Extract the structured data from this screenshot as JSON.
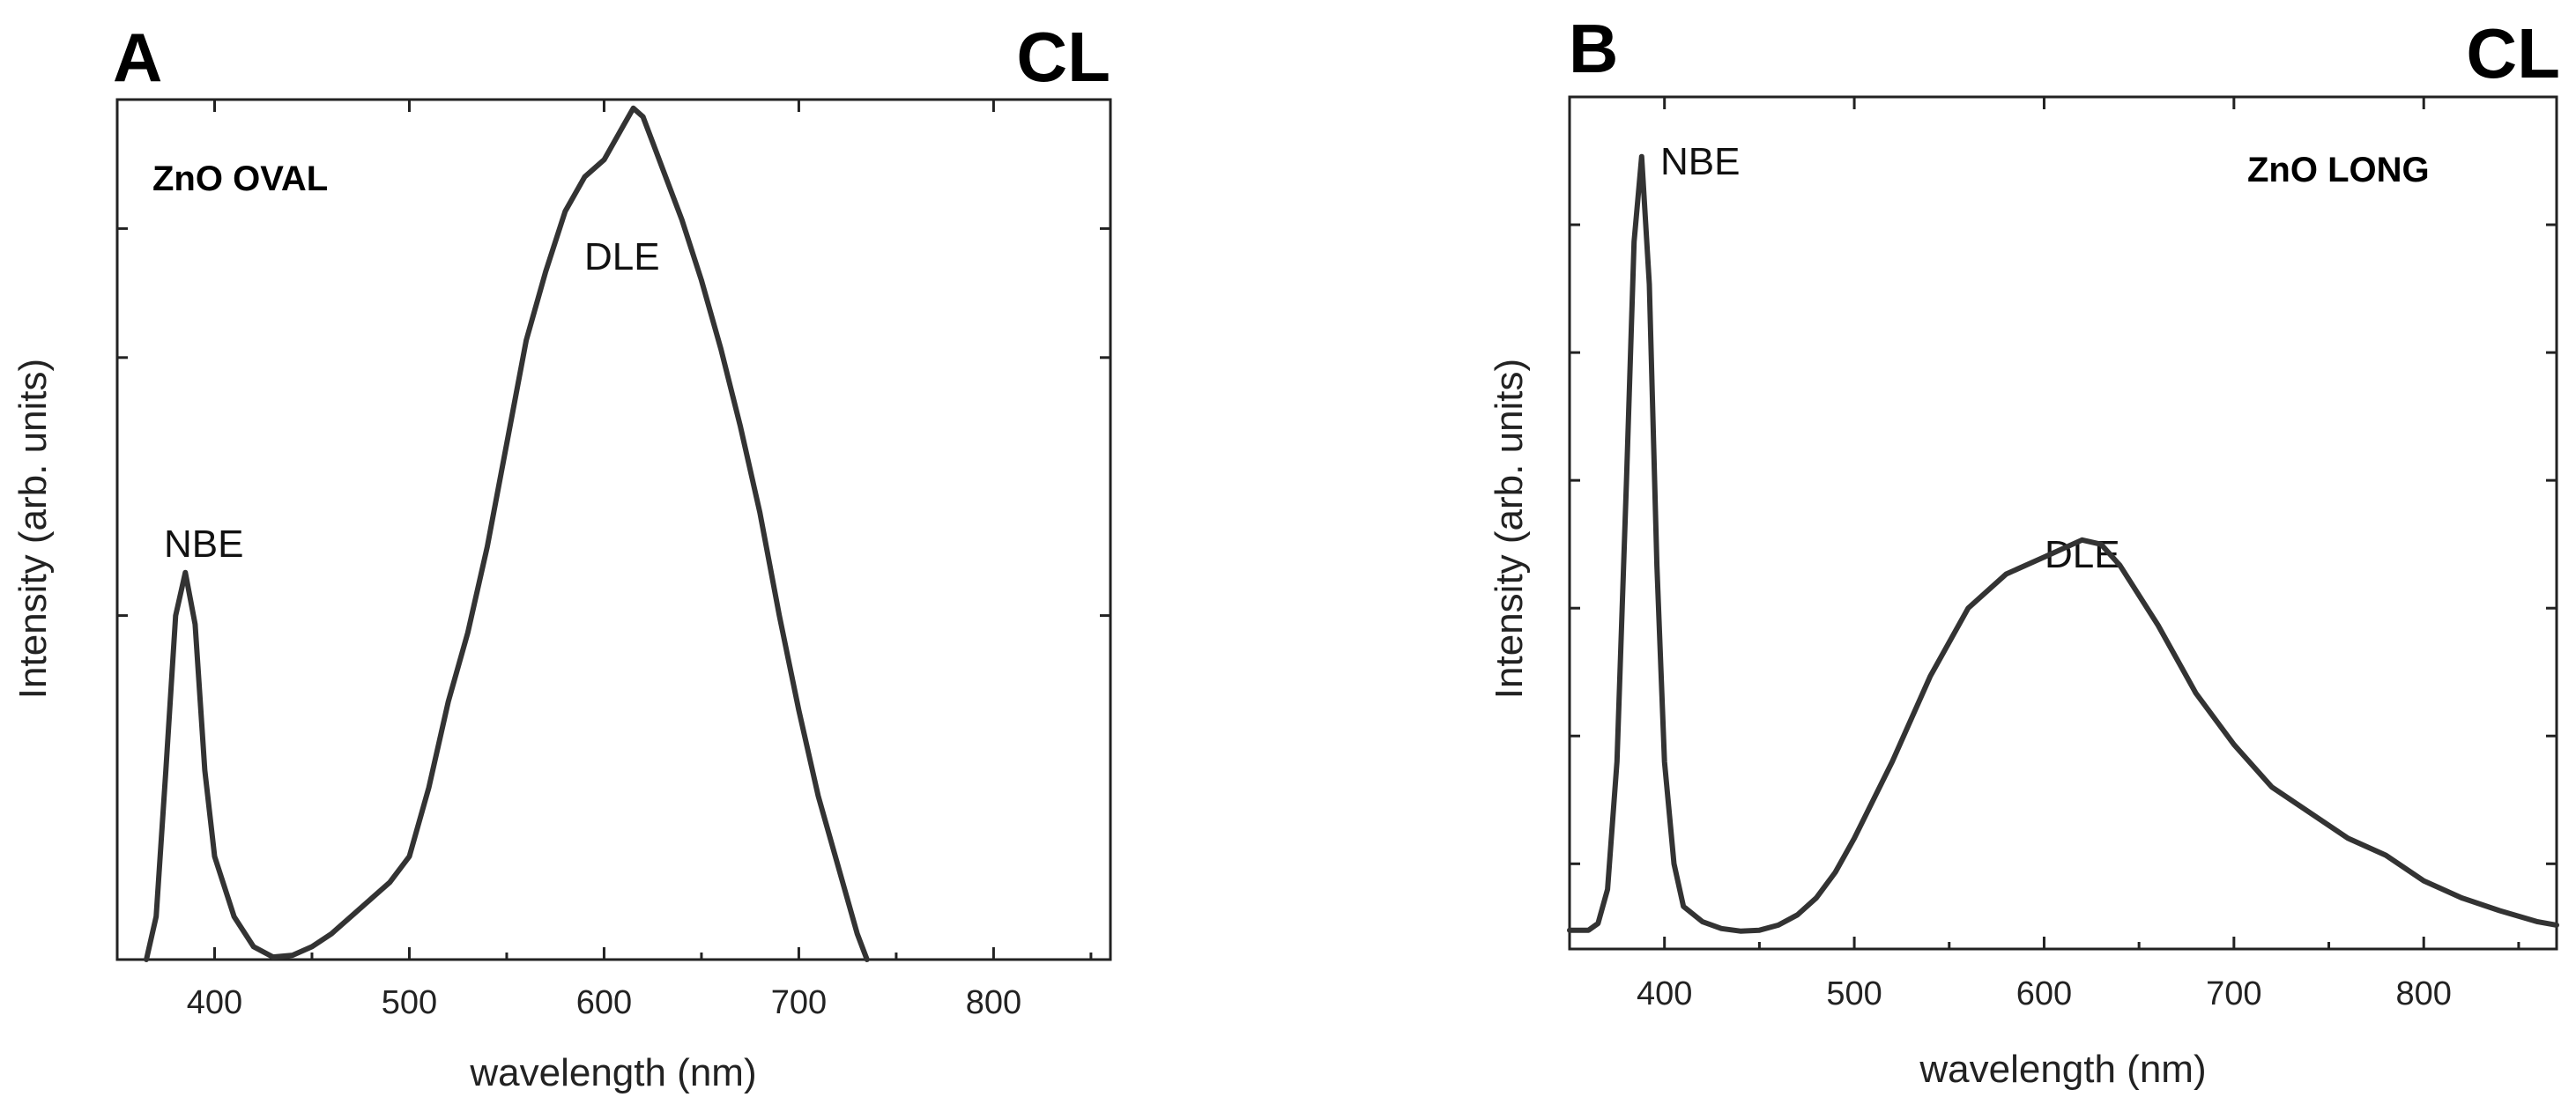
{
  "figure": {
    "panels": [
      {
        "letter": "A",
        "method": "CL",
        "sample": "ZnO OVAL",
        "peak_labels": {
          "nbe": "NBE",
          "dle": "DLE"
        },
        "xlabel": "wavelength (nm)",
        "ylabel": "Intensity (arb. units)"
      },
      {
        "letter": "B",
        "method": "CL",
        "sample": "ZnO LONG",
        "peak_labels": {
          "nbe": "NBE",
          "dle": "DLE"
        },
        "xlabel": "wavelength (nm)",
        "ylabel": "Intensity (arb. units)"
      }
    ]
  },
  "chart_data": [
    {
      "type": "line",
      "title": "A",
      "subtitle": "CL",
      "series": [
        {
          "name": "ZnO OVAL",
          "x": [
            365,
            370,
            375,
            380,
            385,
            390,
            395,
            400,
            410,
            420,
            430,
            440,
            450,
            460,
            470,
            480,
            490,
            500,
            510,
            520,
            530,
            540,
            550,
            560,
            570,
            580,
            590,
            600,
            605,
            610,
            615,
            620,
            625,
            630,
            640,
            650,
            660,
            670,
            680,
            690,
            700,
            710,
            720,
            730,
            735
          ],
          "y": [
            0,
            5,
            22,
            40,
            45,
            39,
            22,
            12,
            5,
            1.5,
            0.3,
            0.5,
            1.5,
            3,
            5,
            7,
            9,
            12,
            20,
            30,
            38,
            48,
            60,
            72,
            80,
            87,
            91,
            93,
            95,
            97,
            99,
            98,
            95,
            92,
            86,
            79,
            71,
            62,
            52,
            40,
            29,
            19,
            11,
            3,
            0
          ]
        }
      ],
      "xlabel": "wavelength (nm)",
      "ylabel": "Intensity (arb. units)",
      "xlim": [
        350,
        860
      ],
      "ylim": [
        0,
        100
      ],
      "xticks": [
        400,
        500,
        600,
        700,
        800
      ],
      "annotations": [
        "ZnO OVAL",
        "NBE",
        "DLE"
      ],
      "grid": false
    },
    {
      "type": "line",
      "title": "B",
      "subtitle": "CL",
      "series": [
        {
          "name": "ZnO LONG",
          "x": [
            350,
            360,
            365,
            370,
            375,
            380,
            384,
            388,
            392,
            396,
            400,
            405,
            410,
            420,
            430,
            440,
            450,
            460,
            470,
            480,
            490,
            500,
            520,
            540,
            560,
            580,
            600,
            620,
            630,
            640,
            660,
            680,
            700,
            720,
            740,
            760,
            780,
            800,
            820,
            840,
            860,
            870
          ],
          "y": [
            2.2,
            2.2,
            3,
            7,
            22,
            55,
            83,
            93,
            78,
            45,
            22,
            10,
            5,
            3.2,
            2.4,
            2.1,
            2.2,
            2.8,
            4,
            6,
            9,
            13,
            22,
            32,
            40,
            44,
            46,
            48,
            47.5,
            45,
            38,
            30,
            24,
            19,
            16,
            13,
            11,
            8,
            6,
            4.5,
            3.2,
            2.8
          ]
        }
      ],
      "xlabel": "wavelength (nm)",
      "ylabel": "Intensity (arb. units)",
      "xlim": [
        350,
        870
      ],
      "ylim": [
        0,
        100
      ],
      "xticks": [
        400,
        500,
        600,
        700,
        800
      ],
      "annotations": [
        "ZnO LONG",
        "NBE",
        "DLE"
      ],
      "grid": false
    }
  ]
}
